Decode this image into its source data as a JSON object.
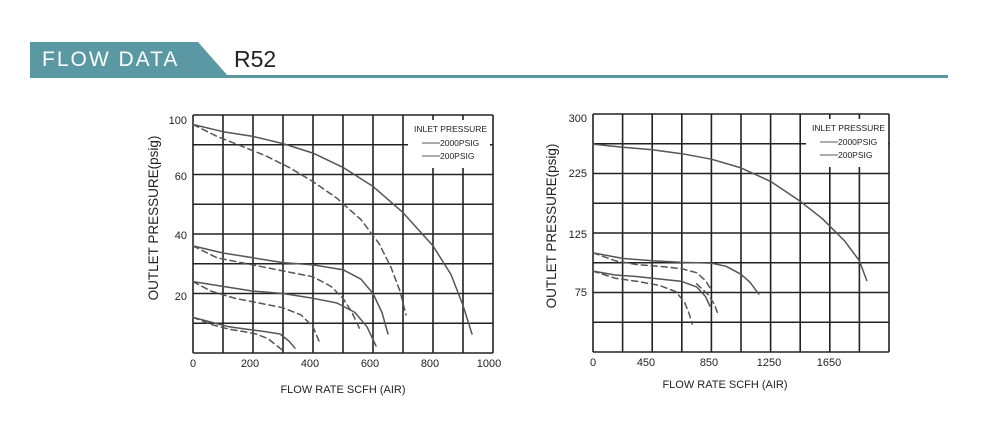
{
  "header": {
    "tab_label": "FLOW  DATA",
    "model": "R52"
  },
  "chart_data": [
    {
      "type": "line",
      "xlabel": "FLOW RATE SCFH (AIR)",
      "ylabel": "OUTLET PRESSURE(psig)",
      "x_ticks": [
        "0",
        "200",
        "400",
        "600",
        "800",
        "1000"
      ],
      "y_ticks": [
        "20",
        "40",
        "60",
        "100"
      ],
      "xlim": [
        0,
        1000
      ],
      "ylim": [
        0,
        100
      ],
      "legend": {
        "title": "INLET PRESSURE",
        "entries": [
          "2000PSIG",
          "200PSIG"
        ],
        "position": "top-right"
      },
      "series": [
        {
          "name": "2000PSIG",
          "style": "solid",
          "x": [
            0,
            100,
            200,
            300,
            400,
            500,
            600,
            700,
            800,
            860,
            900,
            930
          ],
          "y": [
            96,
            93,
            91,
            88,
            84,
            78,
            70,
            59,
            45,
            33,
            20,
            8
          ]
        },
        {
          "name": "200PSIG",
          "style": "dashed",
          "x": [
            0,
            80,
            160,
            240,
            320,
            400,
            480,
            560,
            620,
            660,
            690,
            710
          ],
          "y": [
            96,
            91,
            87,
            83,
            78,
            72,
            65,
            56,
            46,
            36,
            26,
            16
          ]
        },
        {
          "name": "2000PSIG",
          "style": "solid",
          "x": [
            0,
            100,
            200,
            300,
            400,
            500,
            560,
            600,
            630,
            650
          ],
          "y": [
            45,
            42,
            40,
            38,
            37,
            35,
            31,
            25,
            17,
            8
          ]
        },
        {
          "name": "200PSIG",
          "style": "dashed",
          "x": [
            0,
            80,
            160,
            240,
            320,
            400,
            460,
            500,
            530,
            560
          ],
          "y": [
            45,
            40,
            38,
            36,
            34,
            32,
            28,
            23,
            17,
            9
          ]
        },
        {
          "name": "2000PSIG",
          "style": "solid",
          "x": [
            0,
            100,
            200,
            300,
            400,
            480,
            540,
            580,
            610
          ],
          "y": [
            30,
            28,
            26,
            25,
            23,
            21,
            17,
            11,
            3
          ]
        },
        {
          "name": "200PSIG",
          "style": "dashed",
          "x": [
            0,
            60,
            140,
            220,
            300,
            360,
            400,
            420
          ],
          "y": [
            30,
            26,
            23,
            21,
            19,
            16,
            11,
            5
          ]
        },
        {
          "name": "2000PSIG",
          "style": "solid",
          "x": [
            0,
            60,
            120,
            180,
            240,
            290,
            320,
            340
          ],
          "y": [
            15,
            13,
            11,
            10,
            9,
            8,
            5,
            2
          ]
        },
        {
          "name": "200PSIG",
          "style": "dashed",
          "x": [
            0,
            60,
            120,
            170,
            210,
            250,
            280,
            300
          ],
          "y": [
            15,
            12,
            10,
            9,
            8,
            6,
            3,
            1
          ]
        }
      ]
    },
    {
      "type": "line",
      "xlabel": "FLOW RATE SCFH (AIR)",
      "ylabel": "OUTLET PRESSURE(psig)",
      "x_ticks": [
        "0",
        "450",
        "850",
        "1250",
        "1650"
      ],
      "y_ticks": [
        "75",
        "125",
        "225",
        "300"
      ],
      "xlim": [
        0,
        2000
      ],
      "ylim": [
        0,
        300
      ],
      "legend": {
        "title": "INLET PRESSURE",
        "entries": [
          "2000PSIG",
          "200PSIG"
        ],
        "position": "top-right"
      },
      "series": [
        {
          "name": "2000PSIG",
          "style": "solid",
          "x": [
            0,
            200,
            400,
            600,
            800,
            1000,
            1200,
            1400,
            1550,
            1700,
            1800,
            1850
          ],
          "y": [
            262,
            258,
            255,
            250,
            243,
            232,
            215,
            190,
            168,
            140,
            115,
            90
          ]
        },
        {
          "name": "2000PSIG",
          "style": "solid",
          "x": [
            0,
            200,
            400,
            600,
            800,
            900,
            1000,
            1060,
            1120
          ],
          "y": [
            125,
            118,
            115,
            113,
            112,
            108,
            98,
            88,
            73
          ]
        },
        {
          "name": "200PSIG",
          "style": "dashed",
          "x": [
            0,
            150,
            300,
            450,
            600,
            700,
            760,
            800
          ],
          "y": [
            125,
            115,
            110,
            108,
            105,
            100,
            90,
            78
          ]
        },
        {
          "name": "2000PSIG",
          "style": "solid",
          "x": [
            0,
            150,
            300,
            450,
            600,
            700,
            760,
            790
          ],
          "y": [
            102,
            97,
            95,
            92,
            89,
            82,
            70,
            58
          ]
        },
        {
          "name": "200PSIG",
          "style": "dashed",
          "x": [
            0,
            150,
            300,
            450,
            560,
            620,
            650,
            670
          ],
          "y": [
            102,
            93,
            89,
            84,
            76,
            62,
            48,
            35
          ]
        },
        {
          "name": "200PSIG",
          "style": "dashed",
          "x": [
            700,
            780,
            820,
            840
          ],
          "y": [
            86,
            72,
            60,
            50
          ]
        }
      ]
    }
  ]
}
